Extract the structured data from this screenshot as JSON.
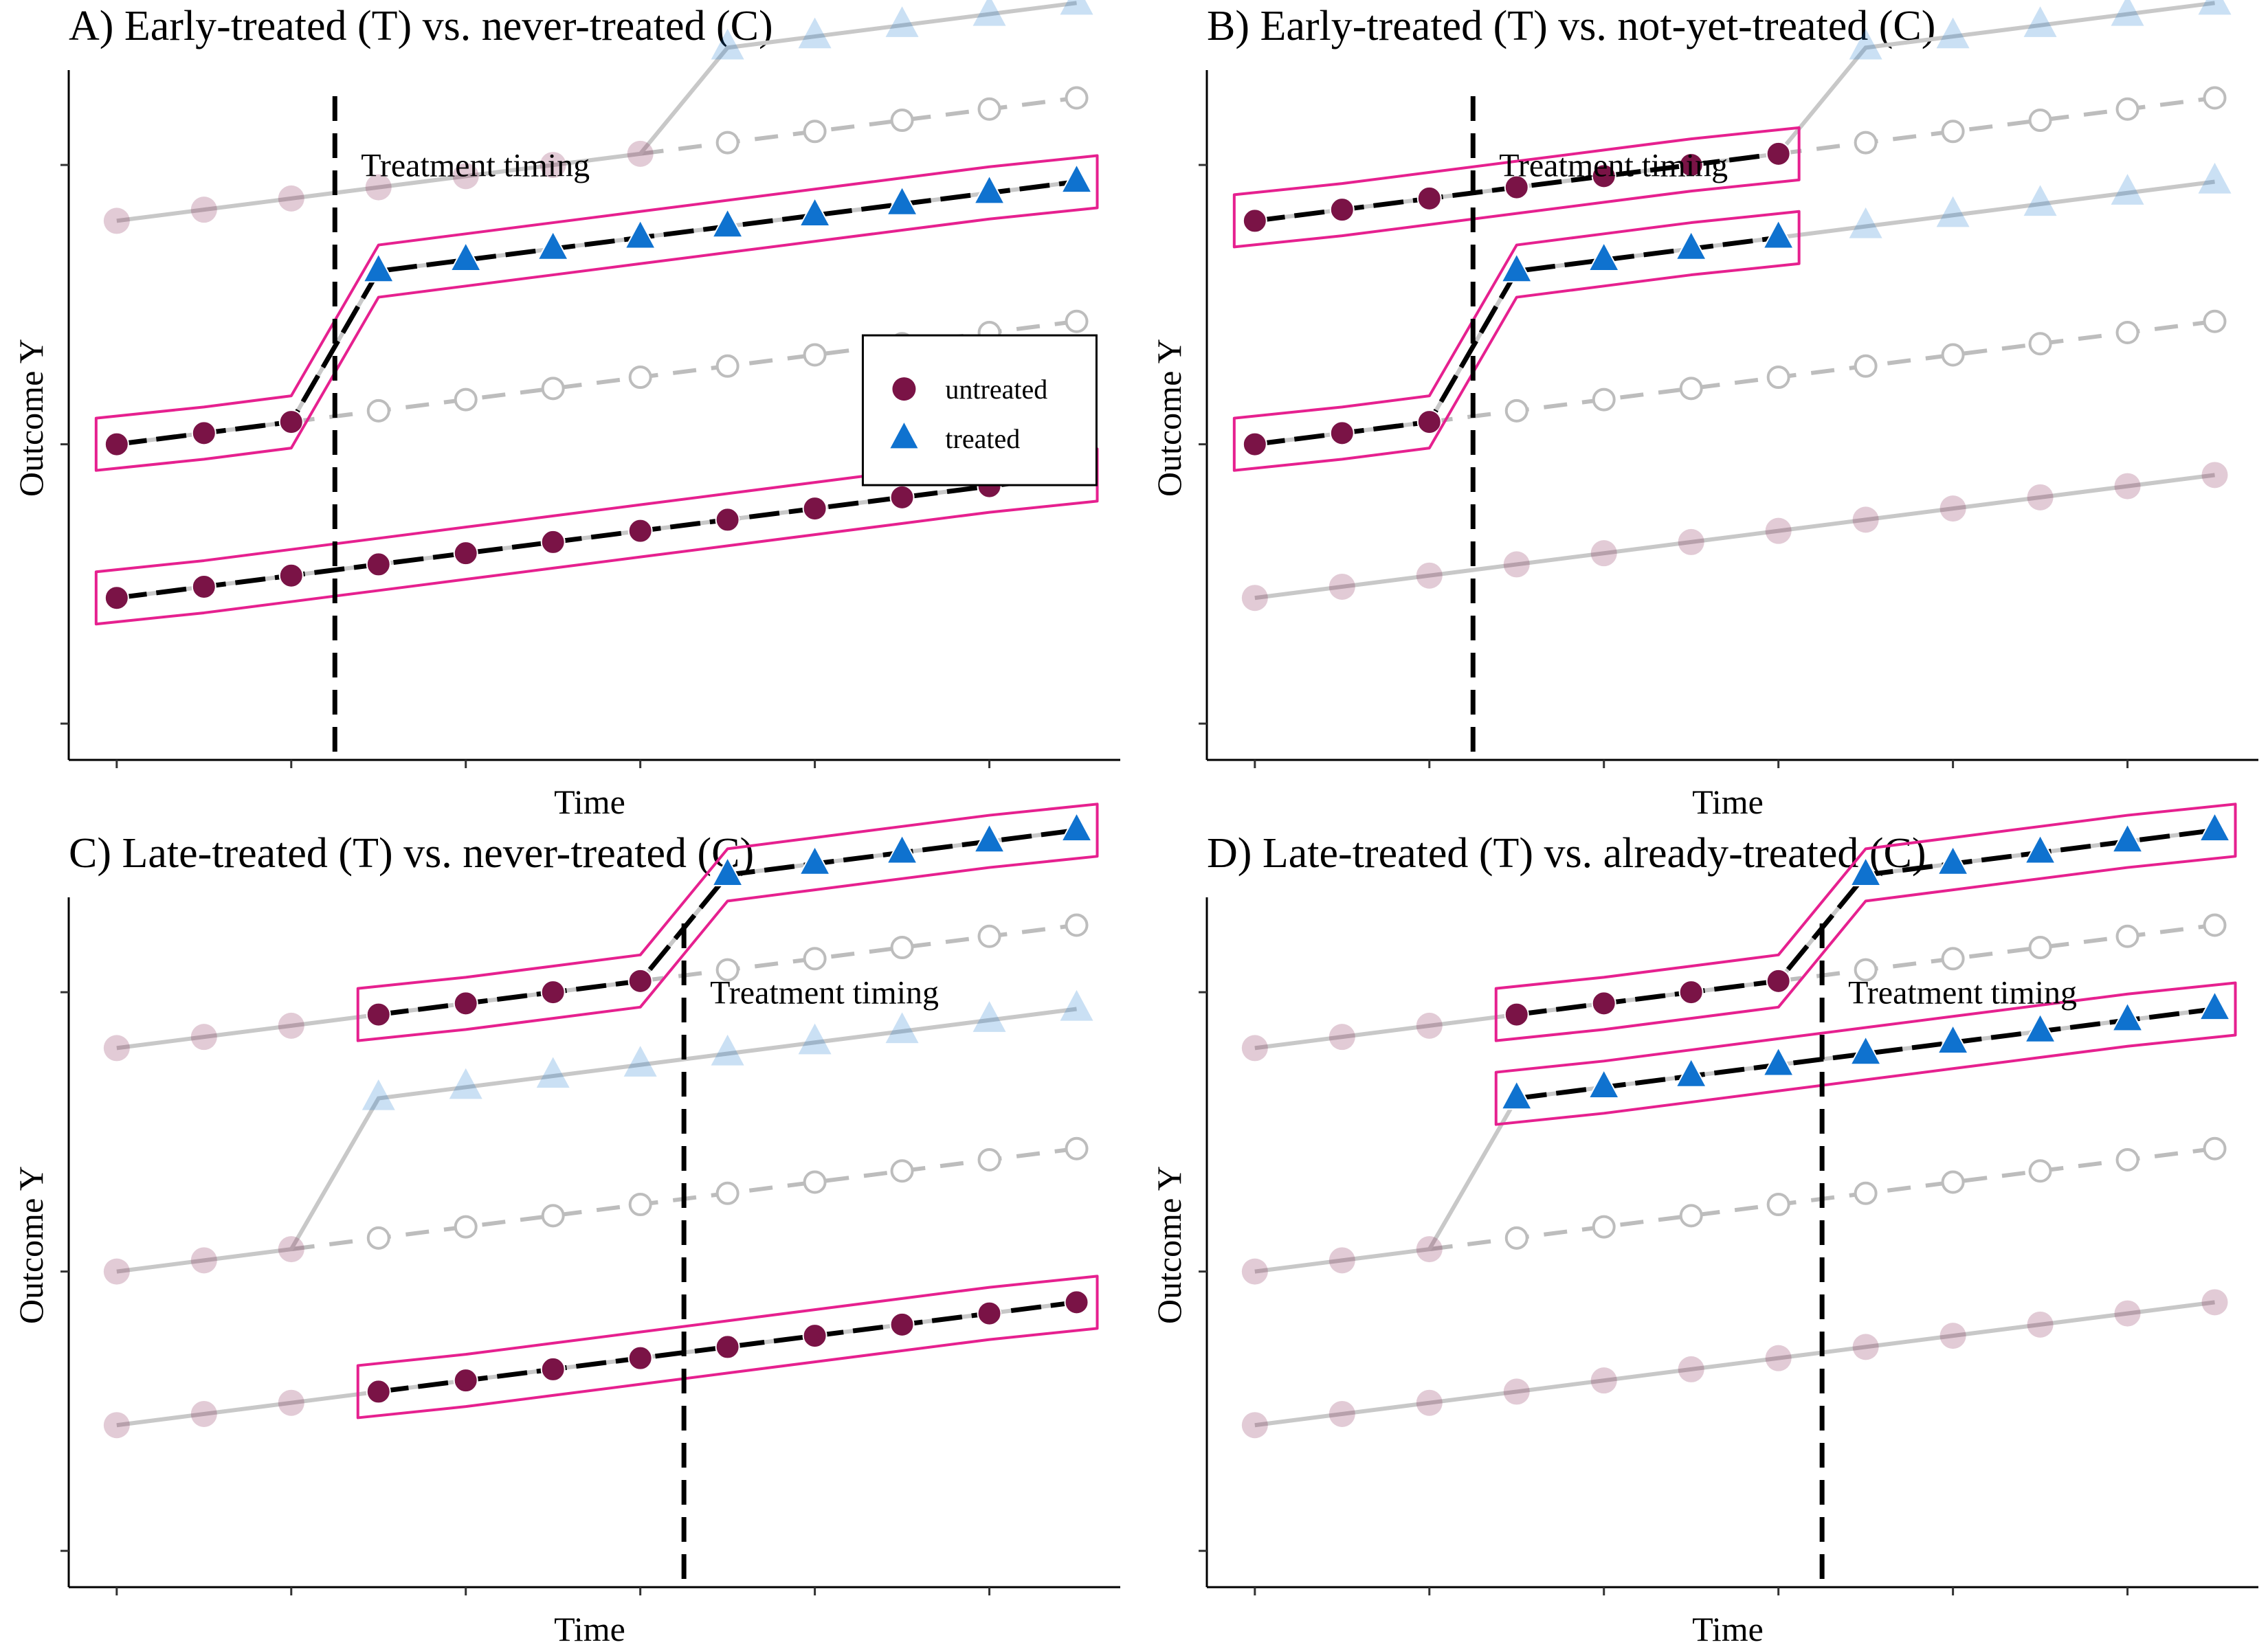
{
  "chart_data": {
    "type": "line",
    "ylabel": "Outcome Y",
    "xlabel": "Time",
    "x": [
      1,
      2,
      3,
      4,
      5,
      6,
      7,
      8,
      9,
      10,
      11,
      12
    ],
    "xlim": [
      0.45,
      12.5
    ],
    "ylim": [
      -1.3,
      23.2
    ],
    "colors": {
      "untreated": "#7a1346",
      "treated": "#0f72cf",
      "counterfactual": "#bdbdbd",
      "highlight": "#e6208f",
      "active_line": "#000000",
      "faded_line": "#c8c8c8"
    },
    "legend": {
      "position": "right",
      "entries": [
        {
          "label": "untreated",
          "marker": "circle"
        },
        {
          "label": "treated",
          "marker": "triangle"
        }
      ]
    },
    "groups": [
      {
        "name": "Early-treated",
        "treatment_time": 3.5,
        "pre_values": [
          10,
          10.4,
          10.8
        ],
        "post_values": [
          16.2,
          16.6,
          17.0,
          17.4,
          17.8,
          18.2,
          18.6,
          19.0,
          19.4
        ],
        "counterfactual": [
          11.2,
          11.6,
          12.0,
          12.4,
          12.8,
          13.2,
          13.6,
          14.0,
          14.4
        ]
      },
      {
        "name": "Late-treated",
        "treatment_time": 7.5,
        "pre_values": [
          18,
          18.4,
          18.8,
          19.2,
          19.6,
          20.0,
          20.4
        ],
        "post_values": [
          24.2,
          24.6,
          25.0,
          25.4,
          25.8
        ],
        "counterfactual": [
          20.8,
          21.2,
          21.6,
          22.0,
          22.4
        ]
      },
      {
        "name": "Never-treated",
        "treatment_time": null,
        "values": [
          4.5,
          4.9,
          5.3,
          5.7,
          6.1,
          6.5,
          6.9,
          7.3,
          7.7,
          8.1,
          8.5,
          8.9
        ]
      }
    ],
    "panels": [
      {
        "title": "A) Early-treated (T) vs. never-treated (C)",
        "annotation": "Treatment timing",
        "vline_x": 3.5,
        "highlight": [
          "Early-treated",
          "Never-treated"
        ],
        "highlight_x": [
          1,
          12
        ],
        "shifted_group": "Late-treated",
        "shown_late_shift": 0,
        "show_legend": true
      },
      {
        "title": "B) Early-treated (T) vs. not-yet-treated (C)",
        "annotation": "Treatment timing",
        "vline_x": 3.5,
        "highlight": [
          "Early-treated",
          "Late-treated"
        ],
        "highlight_x": [
          1,
          7
        ],
        "shifted_group": "Late-treated",
        "shown_late_shift": 0,
        "show_legend": false
      },
      {
        "title": "C) Late-treated (T) vs. never-treated (C)",
        "annotation": "Treatment timing",
        "vline_x": 7.5,
        "highlight": [
          "Late-treated",
          "Never-treated"
        ],
        "highlight_x": [
          4,
          12
        ],
        "shifted_group": "Late-treated",
        "shown_late_shift": 0,
        "show_legend": false
      },
      {
        "title": "D) Late-treated (T) vs. already-treated (C)",
        "annotation": "Treatment timing",
        "vline_x": 7.5,
        "highlight": [
          "Late-treated",
          "Early-treated"
        ],
        "highlight_x": [
          4,
          12
        ],
        "shifted_group": "Late-treated",
        "shown_late_shift": 0,
        "show_legend": false
      }
    ]
  }
}
